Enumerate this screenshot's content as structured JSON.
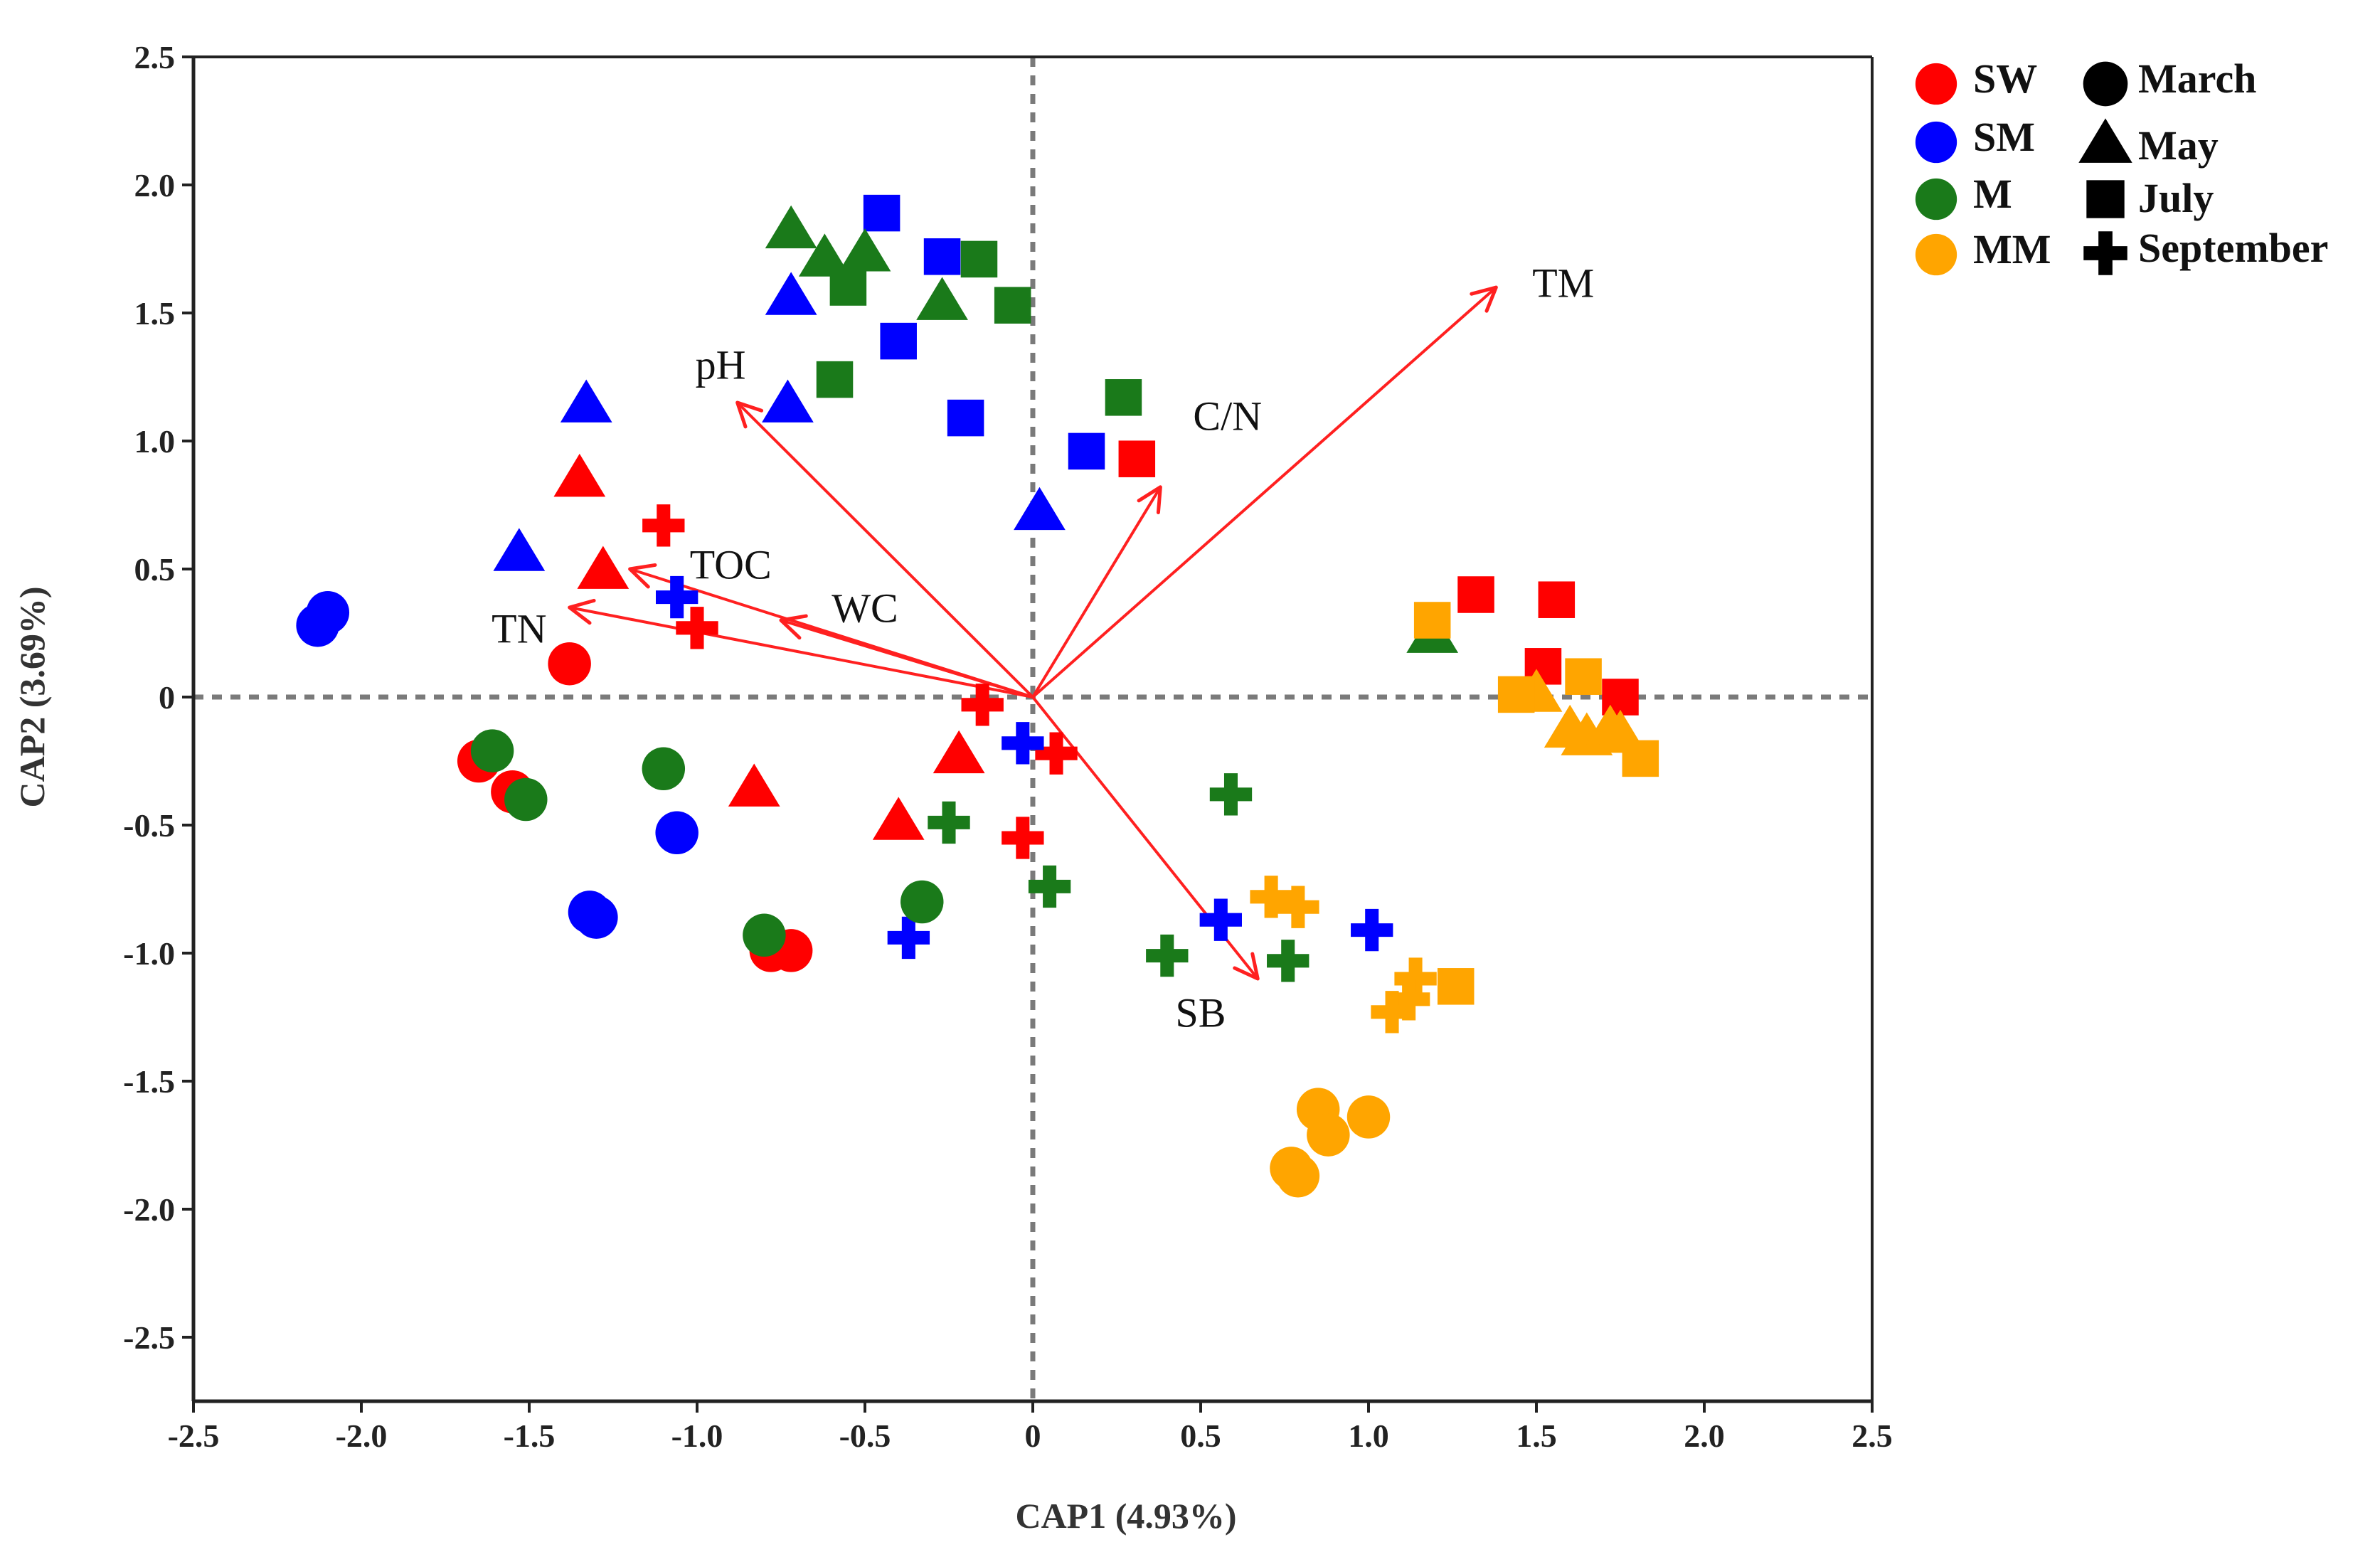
{
  "chart_data": {
    "type": "scatter",
    "xlabel": "CAP1 (4.93%)",
    "ylabel": "CAP2 (3.69%)",
    "xlim": [
      -2.5,
      2.5
    ],
    "ylim": [
      -2.75,
      2.5
    ],
    "xticks": [
      -2.5,
      -2.0,
      -1.5,
      -1.0,
      -0.5,
      0,
      0.5,
      1.0,
      1.5,
      2.0,
      2.5
    ],
    "xtick_labels": [
      "-2.5",
      "-2.0",
      "-1.5",
      "-1.0",
      "-0.5",
      "0",
      "0.5",
      "1.0",
      "1.5",
      "2.0",
      "2.5"
    ],
    "yticks": [
      2.5,
      2.0,
      1.5,
      1.0,
      0.5,
      0,
      -0.5,
      -1.0,
      -1.5,
      -2.0,
      -2.5
    ],
    "ytick_labels": [
      "2.5",
      "2.0",
      "1.5",
      "1.0",
      "0.5",
      "0",
      "-0.5",
      "-1.0",
      "-1.5",
      "-2.0",
      "-2.5"
    ],
    "grid": false,
    "reference_lines": {
      "x": 0,
      "y": 0,
      "style": "dashed"
    },
    "groups": [
      {
        "name": "SW",
        "color": "#ff0000"
      },
      {
        "name": "SM",
        "color": "#0000ff"
      },
      {
        "name": "M",
        "color": "#1a7a1a"
      },
      {
        "name": "MM",
        "color": "#ffa500"
      }
    ],
    "months": [
      {
        "name": "March",
        "shape": "circle"
      },
      {
        "name": "May",
        "shape": "triangle"
      },
      {
        "name": "July",
        "shape": "square"
      },
      {
        "name": "September",
        "shape": "plus"
      }
    ],
    "legend_position": "top-right, outside plot",
    "vectors": [
      {
        "name": "TM",
        "x": 1.38,
        "y": 1.6,
        "label_x": 1.58,
        "label_y": 1.6
      },
      {
        "name": "pH",
        "x": -0.88,
        "y": 1.15,
        "label_x": -0.93,
        "label_y": 1.28
      },
      {
        "name": "C/N",
        "x": 0.38,
        "y": 0.82,
        "label_x": 0.58,
        "label_y": 1.08
      },
      {
        "name": "TOC",
        "x": -1.2,
        "y": 0.5,
        "label_x": -0.9,
        "label_y": 0.5
      },
      {
        "name": "TN",
        "x": -1.38,
        "y": 0.35,
        "label_x": -1.53,
        "label_y": 0.25
      },
      {
        "name": "WC",
        "x": -0.75,
        "y": 0.3,
        "label_x": -0.5,
        "label_y": 0.33
      },
      {
        "name": "SB",
        "x": 0.67,
        "y": -1.1,
        "label_x": 0.5,
        "label_y": -1.25
      }
    ],
    "points": [
      {
        "group": "SW",
        "month": "March",
        "x": -1.38,
        "y": 0.13
      },
      {
        "group": "SW",
        "month": "March",
        "x": -1.65,
        "y": -0.25
      },
      {
        "group": "SW",
        "month": "March",
        "x": -1.55,
        "y": -0.37
      },
      {
        "group": "SW",
        "month": "March",
        "x": -0.78,
        "y": -0.99
      },
      {
        "group": "SW",
        "month": "March",
        "x": -0.72,
        "y": -0.99
      },
      {
        "group": "SW",
        "month": "May",
        "x": -1.35,
        "y": 0.86
      },
      {
        "group": "SW",
        "month": "May",
        "x": -1.28,
        "y": 0.5
      },
      {
        "group": "SW",
        "month": "May",
        "x": -0.83,
        "y": -0.35
      },
      {
        "group": "SW",
        "month": "May",
        "x": -0.4,
        "y": -0.48
      },
      {
        "group": "SW",
        "month": "May",
        "x": -0.22,
        "y": -0.22
      },
      {
        "group": "SW",
        "month": "July",
        "x": 0.31,
        "y": 0.93
      },
      {
        "group": "SW",
        "month": "July",
        "x": 1.32,
        "y": 0.4
      },
      {
        "group": "SW",
        "month": "July",
        "x": 1.56,
        "y": 0.38
      },
      {
        "group": "SW",
        "month": "July",
        "x": 1.52,
        "y": 0.12
      },
      {
        "group": "SW",
        "month": "July",
        "x": 1.75,
        "y": 0.0
      },
      {
        "group": "SW",
        "month": "September",
        "x": -1.1,
        "y": 0.67
      },
      {
        "group": "SW",
        "month": "September",
        "x": -1.0,
        "y": 0.27
      },
      {
        "group": "SW",
        "month": "September",
        "x": -0.15,
        "y": -0.03
      },
      {
        "group": "SW",
        "month": "September",
        "x": 0.07,
        "y": -0.22
      },
      {
        "group": "SW",
        "month": "September",
        "x": -0.03,
        "y": -0.55
      },
      {
        "group": "SM",
        "month": "March",
        "x": -2.13,
        "y": 0.28
      },
      {
        "group": "SM",
        "month": "March",
        "x": -2.1,
        "y": 0.33
      },
      {
        "group": "SM",
        "month": "March",
        "x": -1.06,
        "y": -0.53
      },
      {
        "group": "SM",
        "month": "March",
        "x": -1.32,
        "y": -0.84
      },
      {
        "group": "SM",
        "month": "March",
        "x": -1.3,
        "y": -0.86
      },
      {
        "group": "SM",
        "month": "May",
        "x": -1.33,
        "y": 1.15
      },
      {
        "group": "SM",
        "month": "May",
        "x": -1.53,
        "y": 0.57
      },
      {
        "group": "SM",
        "month": "May",
        "x": -0.72,
        "y": 1.57
      },
      {
        "group": "SM",
        "month": "May",
        "x": -0.73,
        "y": 1.15
      },
      {
        "group": "SM",
        "month": "May",
        "x": 0.02,
        "y": 0.73
      },
      {
        "group": "SM",
        "month": "July",
        "x": -0.45,
        "y": 1.89
      },
      {
        "group": "SM",
        "month": "July",
        "x": -0.27,
        "y": 1.72
      },
      {
        "group": "SM",
        "month": "July",
        "x": -0.4,
        "y": 1.39
      },
      {
        "group": "SM",
        "month": "July",
        "x": -0.2,
        "y": 1.09
      },
      {
        "group": "SM",
        "month": "July",
        "x": 0.16,
        "y": 0.96
      },
      {
        "group": "SM",
        "month": "September",
        "x": -1.06,
        "y": 0.39
      },
      {
        "group": "SM",
        "month": "September",
        "x": -0.03,
        "y": -0.18
      },
      {
        "group": "SM",
        "month": "September",
        "x": -0.37,
        "y": -0.94
      },
      {
        "group": "SM",
        "month": "September",
        "x": 0.56,
        "y": -0.87
      },
      {
        "group": "SM",
        "month": "September",
        "x": 1.01,
        "y": -0.91
      },
      {
        "group": "M",
        "month": "March",
        "x": -1.61,
        "y": -0.21
      },
      {
        "group": "M",
        "month": "March",
        "x": -1.51,
        "y": -0.4
      },
      {
        "group": "M",
        "month": "March",
        "x": -1.1,
        "y": -0.28
      },
      {
        "group": "M",
        "month": "March",
        "x": -0.8,
        "y": -0.93
      },
      {
        "group": "M",
        "month": "March",
        "x": -0.33,
        "y": -0.8
      },
      {
        "group": "M",
        "month": "May",
        "x": -0.72,
        "y": 1.83
      },
      {
        "group": "M",
        "month": "May",
        "x": -0.62,
        "y": 1.72
      },
      {
        "group": "M",
        "month": "May",
        "x": -0.5,
        "y": 1.74
      },
      {
        "group": "M",
        "month": "May",
        "x": -0.27,
        "y": 1.55
      },
      {
        "group": "M",
        "month": "May",
        "x": 1.19,
        "y": 0.25
      },
      {
        "group": "M",
        "month": "July",
        "x": -0.55,
        "y": 1.6
      },
      {
        "group": "M",
        "month": "July",
        "x": -0.16,
        "y": 1.71
      },
      {
        "group": "M",
        "month": "July",
        "x": -0.06,
        "y": 1.53
      },
      {
        "group": "M",
        "month": "July",
        "x": -0.59,
        "y": 1.24
      },
      {
        "group": "M",
        "month": "July",
        "x": 0.27,
        "y": 1.17
      },
      {
        "group": "M",
        "month": "September",
        "x": -0.25,
        "y": -0.49
      },
      {
        "group": "M",
        "month": "September",
        "x": 0.05,
        "y": -0.74
      },
      {
        "group": "M",
        "month": "September",
        "x": 0.59,
        "y": -0.38
      },
      {
        "group": "M",
        "month": "September",
        "x": 0.4,
        "y": -1.01
      },
      {
        "group": "M",
        "month": "September",
        "x": 0.76,
        "y": -1.03
      },
      {
        "group": "MM",
        "month": "March",
        "x": 0.85,
        "y": -1.61
      },
      {
        "group": "MM",
        "month": "March",
        "x": 0.88,
        "y": -1.71
      },
      {
        "group": "MM",
        "month": "March",
        "x": 1.0,
        "y": -1.64
      },
      {
        "group": "MM",
        "month": "March",
        "x": 0.77,
        "y": -1.84
      },
      {
        "group": "MM",
        "month": "March",
        "x": 0.79,
        "y": -1.87
      },
      {
        "group": "MM",
        "month": "May",
        "x": 1.5,
        "y": 0.02
      },
      {
        "group": "MM",
        "month": "May",
        "x": 1.6,
        "y": -0.12
      },
      {
        "group": "MM",
        "month": "May",
        "x": 1.65,
        "y": -0.15
      },
      {
        "group": "MM",
        "month": "May",
        "x": 1.72,
        "y": -0.12
      },
      {
        "group": "MM",
        "month": "May",
        "x": 1.75,
        "y": -0.14
      },
      {
        "group": "MM",
        "month": "July",
        "x": 1.19,
        "y": 0.3
      },
      {
        "group": "MM",
        "month": "July",
        "x": 1.44,
        "y": 0.01
      },
      {
        "group": "MM",
        "month": "July",
        "x": 1.64,
        "y": 0.08
      },
      {
        "group": "MM",
        "month": "July",
        "x": 1.81,
        "y": -0.24
      },
      {
        "group": "MM",
        "month": "July",
        "x": 1.26,
        "y": -1.13
      },
      {
        "group": "MM",
        "month": "September",
        "x": 0.71,
        "y": -0.78
      },
      {
        "group": "MM",
        "month": "September",
        "x": 0.79,
        "y": -0.82
      },
      {
        "group": "MM",
        "month": "September",
        "x": 1.14,
        "y": -1.1
      },
      {
        "group": "MM",
        "month": "September",
        "x": 1.12,
        "y": -1.18
      },
      {
        "group": "MM",
        "month": "September",
        "x": 1.07,
        "y": -1.23
      }
    ]
  }
}
